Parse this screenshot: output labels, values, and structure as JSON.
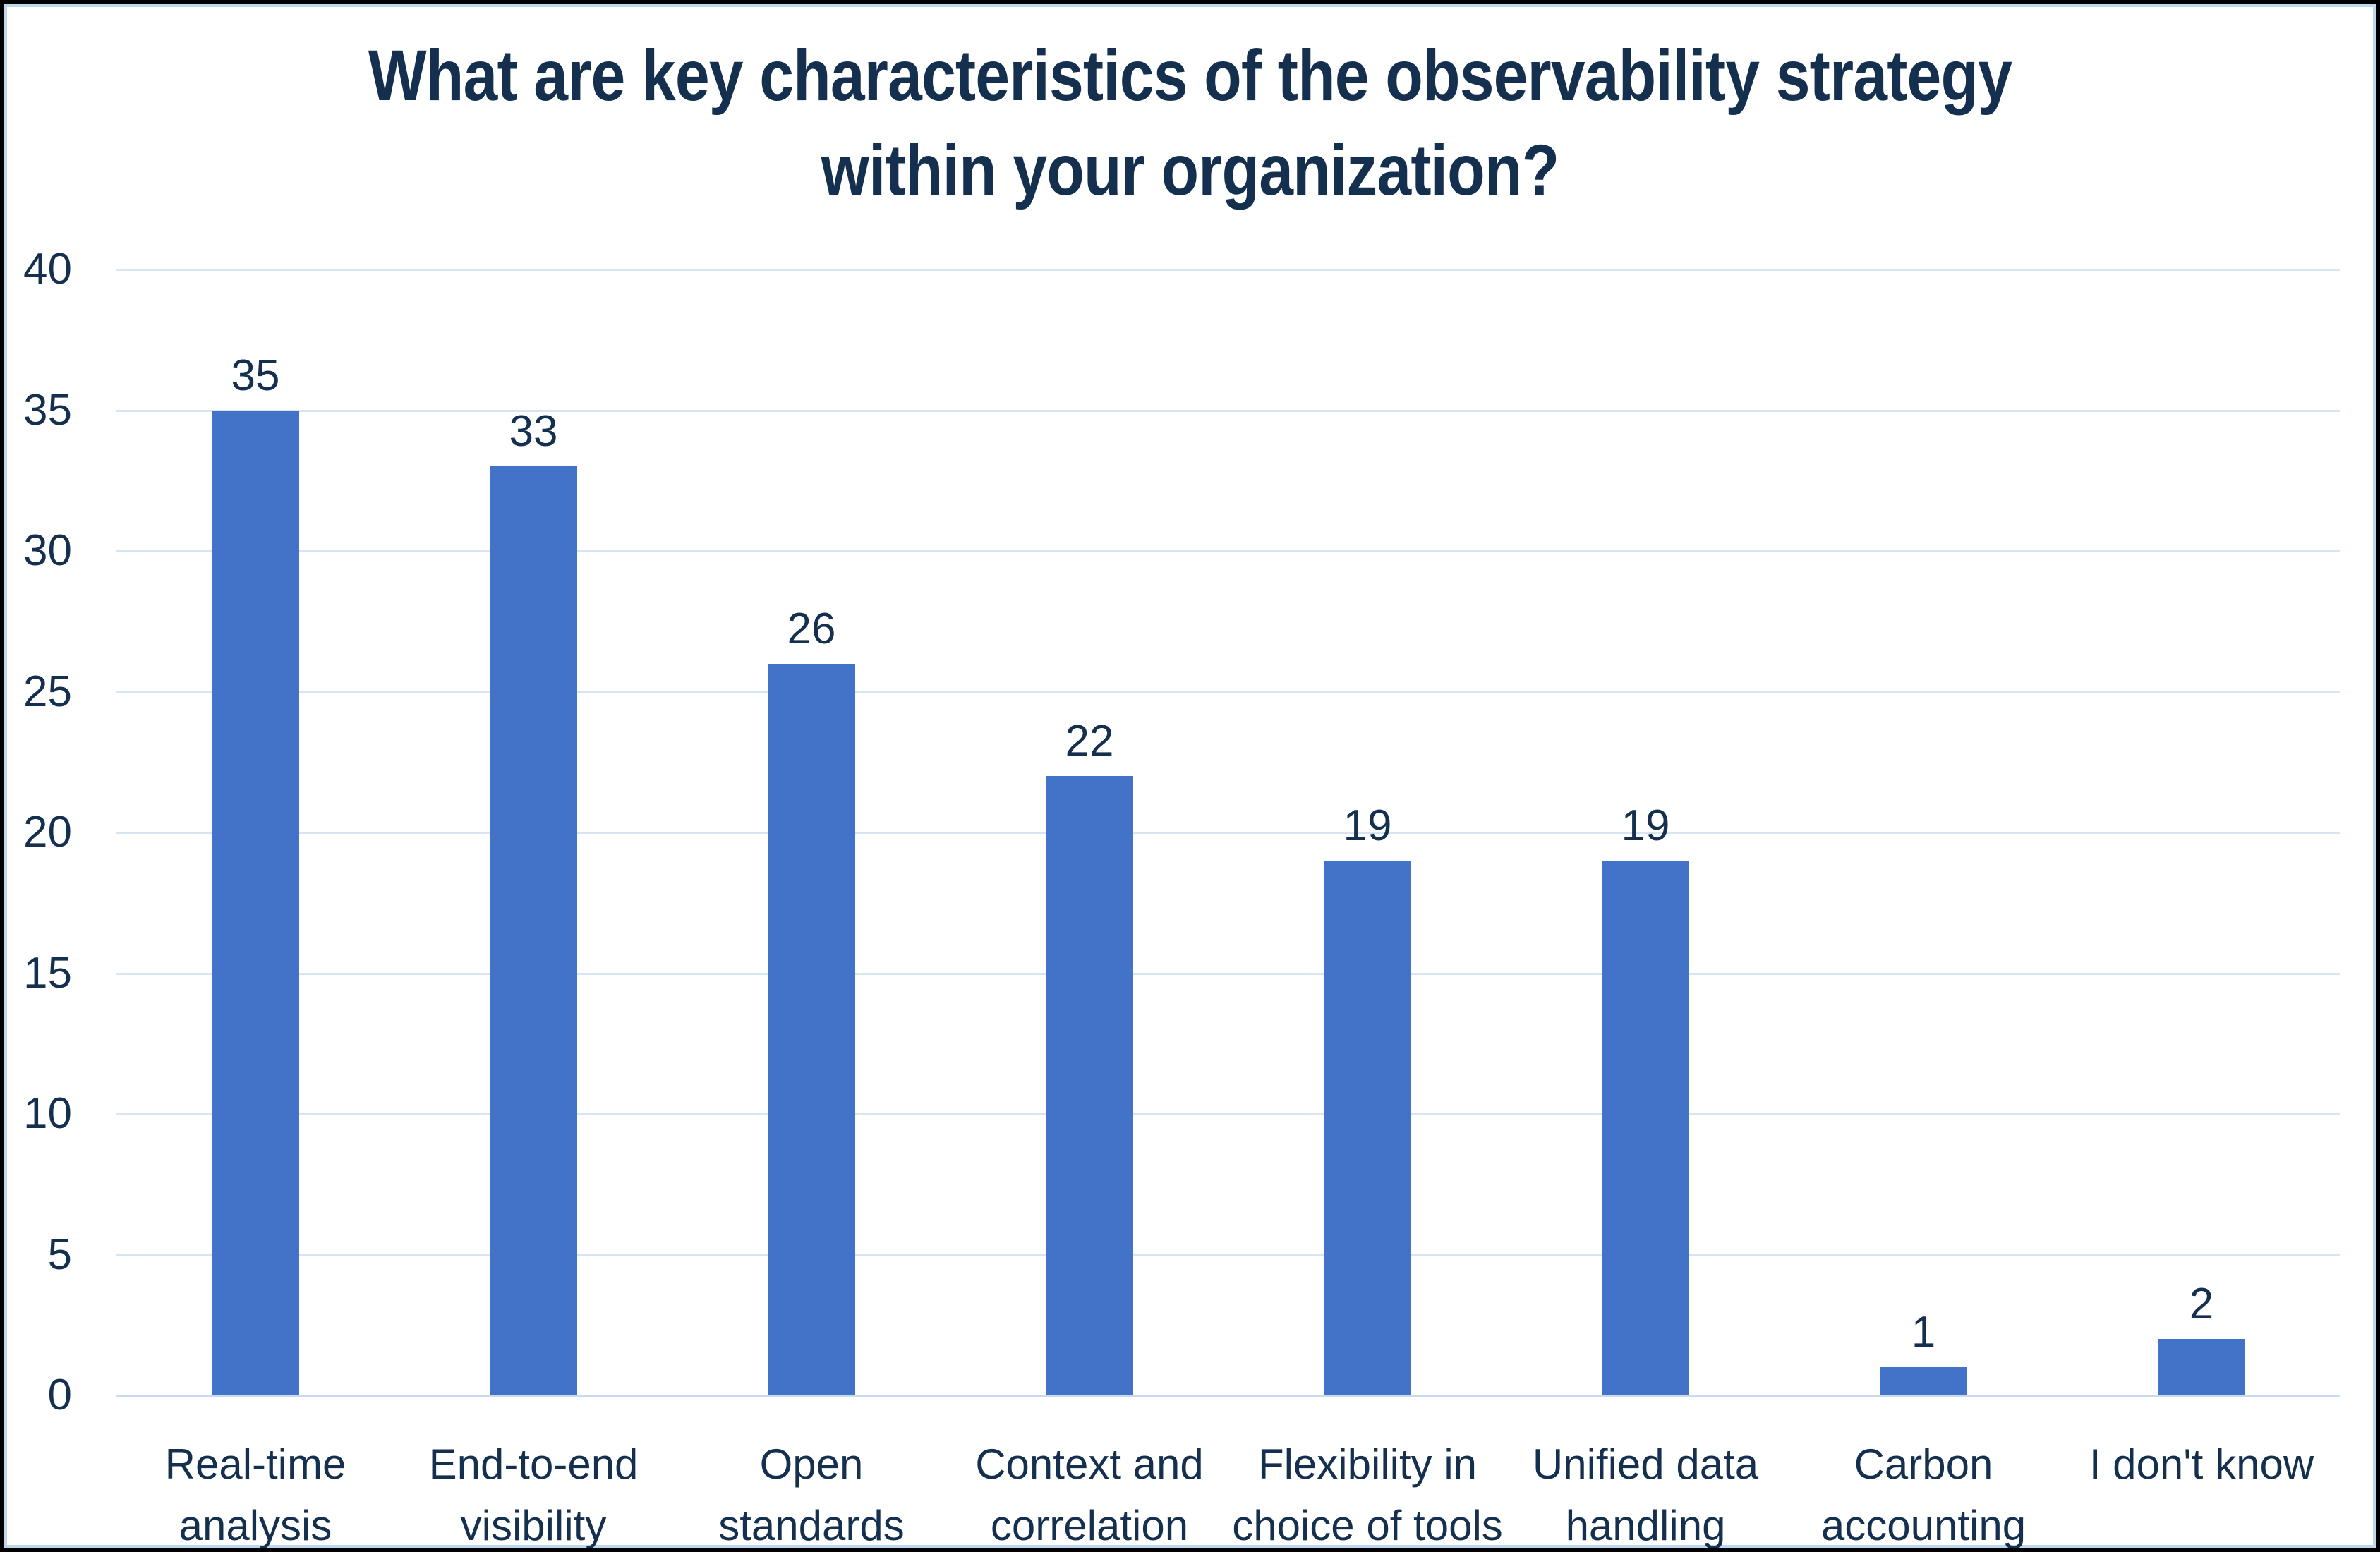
{
  "chart_data": {
    "type": "bar",
    "title": "What are key characteristics of the observability strategy within your organization?",
    "title_lines": [
      "What are key characteristics of the observability strategy",
      "within your organization?"
    ],
    "categories": [
      "Real-time analysis",
      "End-to-end visibility",
      "Open standards",
      "Context and correlation",
      "Flexibility in choice of tools",
      "Unified data handling",
      "Carbon accounting",
      "I don't know"
    ],
    "category_label_lines": [
      [
        "Real-time",
        "analysis"
      ],
      [
        "End-to-end",
        "visibility"
      ],
      [
        "Open",
        "standards"
      ],
      [
        "Context and",
        "correlation"
      ],
      [
        "Flexibility in",
        "choice of tools"
      ],
      [
        "Unified data",
        "handling"
      ],
      [
        "Carbon",
        "accounting"
      ],
      [
        "I don't know"
      ]
    ],
    "values": [
      35,
      33,
      26,
      22,
      19,
      19,
      1,
      2
    ],
    "data_labels": [
      "35",
      "33",
      "26",
      "22",
      "19",
      "19",
      "1",
      "2"
    ],
    "xlabel": "",
    "ylabel": "",
    "ylim": [
      0,
      40
    ],
    "yticks": [
      0,
      5,
      10,
      15,
      20,
      25,
      30,
      35,
      40
    ],
    "grid": true,
    "legend": false,
    "colors": {
      "bar": "#4373C8",
      "gridline": "#D7E4F2",
      "baseline": "#C9DBEE",
      "text": "#15304E",
      "inner_border": "#BDD7EE",
      "outer_border": "#000000",
      "background": "#FFFFFF"
    }
  }
}
